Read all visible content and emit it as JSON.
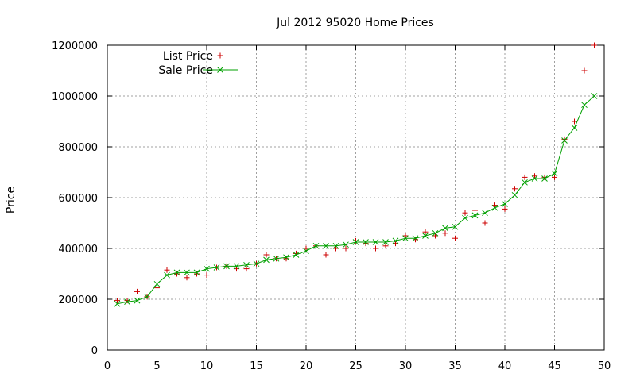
{
  "chart_data": {
    "type": "line",
    "title": "Jul 2012 95020 Home Prices",
    "xlabel": "",
    "ylabel": "Price",
    "xlim": [
      0,
      50
    ],
    "ylim": [
      0,
      1200000
    ],
    "xticks": [
      0,
      5,
      10,
      15,
      20,
      25,
      30,
      35,
      40,
      45,
      50
    ],
    "yticks": [
      0,
      200000,
      400000,
      600000,
      800000,
      1000000,
      1200000
    ],
    "xtick_labels": [
      "0",
      "5",
      "10",
      "15",
      "20",
      "25",
      "30",
      "35",
      "40",
      "45",
      "50"
    ],
    "ytick_labels": [
      "0",
      "200000",
      "400000",
      "600000",
      "800000",
      "1000000",
      "1200000"
    ],
    "grid": true,
    "legend_position": "top-left",
    "x": [
      1,
      2,
      3,
      4,
      5,
      6,
      7,
      8,
      9,
      10,
      11,
      12,
      13,
      14,
      15,
      16,
      17,
      18,
      19,
      20,
      21,
      22,
      23,
      24,
      25,
      26,
      27,
      28,
      29,
      30,
      31,
      32,
      33,
      34,
      35,
      36,
      37,
      38,
      39,
      40,
      41,
      42,
      43,
      44,
      45,
      46,
      47,
      48,
      49
    ],
    "series": [
      {
        "name": "List Price",
        "style": "points-plus",
        "color": "#cc0000",
        "values": [
          195000,
          195000,
          230000,
          210000,
          245000,
          315000,
          300000,
          285000,
          300000,
          295000,
          325000,
          330000,
          320000,
          320000,
          340000,
          375000,
          360000,
          360000,
          380000,
          400000,
          410000,
          375000,
          400000,
          400000,
          430000,
          420000,
          400000,
          410000,
          420000,
          450000,
          435000,
          465000,
          450000,
          460000,
          440000,
          540000,
          550000,
          500000,
          570000,
          555000,
          635000,
          680000,
          685000,
          680000,
          680000,
          830000,
          900000,
          1100000,
          1200000
        ]
      },
      {
        "name": "Sale Price",
        "style": "lines-points-x",
        "color": "#00a000",
        "values": [
          182000,
          190000,
          195000,
          210000,
          260000,
          295000,
          305000,
          305000,
          305000,
          320000,
          325000,
          330000,
          330000,
          335000,
          340000,
          355000,
          360000,
          365000,
          375000,
          390000,
          410000,
          410000,
          410000,
          415000,
          425000,
          425000,
          425000,
          425000,
          430000,
          440000,
          440000,
          450000,
          460000,
          480000,
          485000,
          520000,
          530000,
          540000,
          560000,
          575000,
          610000,
          660000,
          675000,
          675000,
          695000,
          825000,
          875000,
          965000,
          1000000
        ]
      }
    ]
  }
}
